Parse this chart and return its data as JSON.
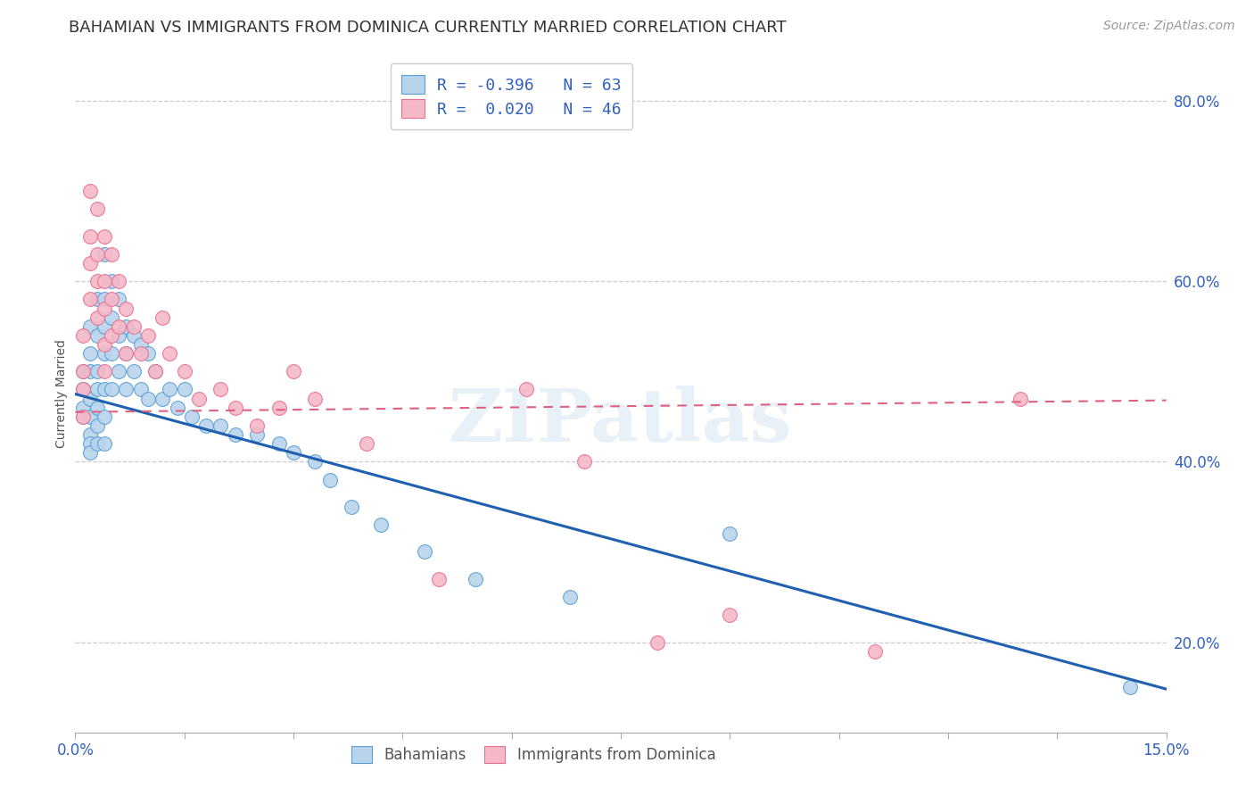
{
  "title": "BAHAMIAN VS IMMIGRANTS FROM DOMINICA CURRENTLY MARRIED CORRELATION CHART",
  "source": "Source: ZipAtlas.com",
  "ylabel": "Currently Married",
  "ylabel_right_ticks": [
    "20.0%",
    "40.0%",
    "60.0%",
    "80.0%"
  ],
  "ylabel_right_vals": [
    0.2,
    0.4,
    0.6,
    0.8
  ],
  "watermark": "ZIPatlas",
  "legend_line1": "R = -0.396   N = 63",
  "legend_line2": "R =  0.020   N = 46",
  "color_bahamian_fill": "#b8d4ed",
  "color_dominica_fill": "#f5b8c8",
  "color_bahamian_edge": "#5a9fd4",
  "color_dominica_edge": "#e87090",
  "color_bahamian_line": "#2060b0",
  "color_dominica_line": "#e06080",
  "color_text_blue": "#3060c0",
  "xmin": 0.0,
  "xmax": 0.15,
  "ymin": 0.1,
  "ymax": 0.85,
  "bahamian_x": [
    0.001,
    0.001,
    0.001,
    0.001,
    0.002,
    0.002,
    0.002,
    0.002,
    0.002,
    0.002,
    0.002,
    0.002,
    0.003,
    0.003,
    0.003,
    0.003,
    0.003,
    0.003,
    0.003,
    0.004,
    0.004,
    0.004,
    0.004,
    0.004,
    0.004,
    0.004,
    0.005,
    0.005,
    0.005,
    0.005,
    0.006,
    0.006,
    0.006,
    0.007,
    0.007,
    0.007,
    0.008,
    0.008,
    0.009,
    0.009,
    0.01,
    0.01,
    0.011,
    0.012,
    0.013,
    0.014,
    0.015,
    0.016,
    0.018,
    0.02,
    0.022,
    0.025,
    0.028,
    0.03,
    0.033,
    0.035,
    0.038,
    0.042,
    0.048,
    0.055,
    0.068,
    0.09,
    0.145
  ],
  "bahamian_y": [
    0.5,
    0.48,
    0.46,
    0.45,
    0.55,
    0.52,
    0.5,
    0.47,
    0.45,
    0.43,
    0.42,
    0.41,
    0.58,
    0.54,
    0.5,
    0.48,
    0.46,
    0.44,
    0.42,
    0.63,
    0.58,
    0.55,
    0.52,
    0.48,
    0.45,
    0.42,
    0.6,
    0.56,
    0.52,
    0.48,
    0.58,
    0.54,
    0.5,
    0.55,
    0.52,
    0.48,
    0.54,
    0.5,
    0.53,
    0.48,
    0.52,
    0.47,
    0.5,
    0.47,
    0.48,
    0.46,
    0.48,
    0.45,
    0.44,
    0.44,
    0.43,
    0.43,
    0.42,
    0.41,
    0.4,
    0.38,
    0.35,
    0.33,
    0.3,
    0.27,
    0.25,
    0.32,
    0.15
  ],
  "dominica_x": [
    0.001,
    0.001,
    0.001,
    0.001,
    0.002,
    0.002,
    0.002,
    0.002,
    0.003,
    0.003,
    0.003,
    0.003,
    0.004,
    0.004,
    0.004,
    0.004,
    0.004,
    0.005,
    0.005,
    0.005,
    0.006,
    0.006,
    0.007,
    0.007,
    0.008,
    0.009,
    0.01,
    0.011,
    0.012,
    0.013,
    0.015,
    0.017,
    0.02,
    0.022,
    0.025,
    0.028,
    0.03,
    0.033,
    0.04,
    0.05,
    0.062,
    0.07,
    0.08,
    0.09,
    0.11,
    0.13
  ],
  "dominica_y": [
    0.54,
    0.5,
    0.48,
    0.45,
    0.7,
    0.65,
    0.62,
    0.58,
    0.68,
    0.63,
    0.6,
    0.56,
    0.65,
    0.6,
    0.57,
    0.53,
    0.5,
    0.63,
    0.58,
    0.54,
    0.6,
    0.55,
    0.57,
    0.52,
    0.55,
    0.52,
    0.54,
    0.5,
    0.56,
    0.52,
    0.5,
    0.47,
    0.48,
    0.46,
    0.44,
    0.46,
    0.5,
    0.47,
    0.42,
    0.27,
    0.48,
    0.4,
    0.2,
    0.23,
    0.19,
    0.47
  ],
  "grid_color": "#cccccc",
  "background_color": "#ffffff",
  "title_fontsize": 13,
  "axis_label_fontsize": 10,
  "blue_line_y0": 0.475,
  "blue_line_y1": 0.148,
  "pink_line_y0": 0.455,
  "pink_line_y1": 0.468
}
